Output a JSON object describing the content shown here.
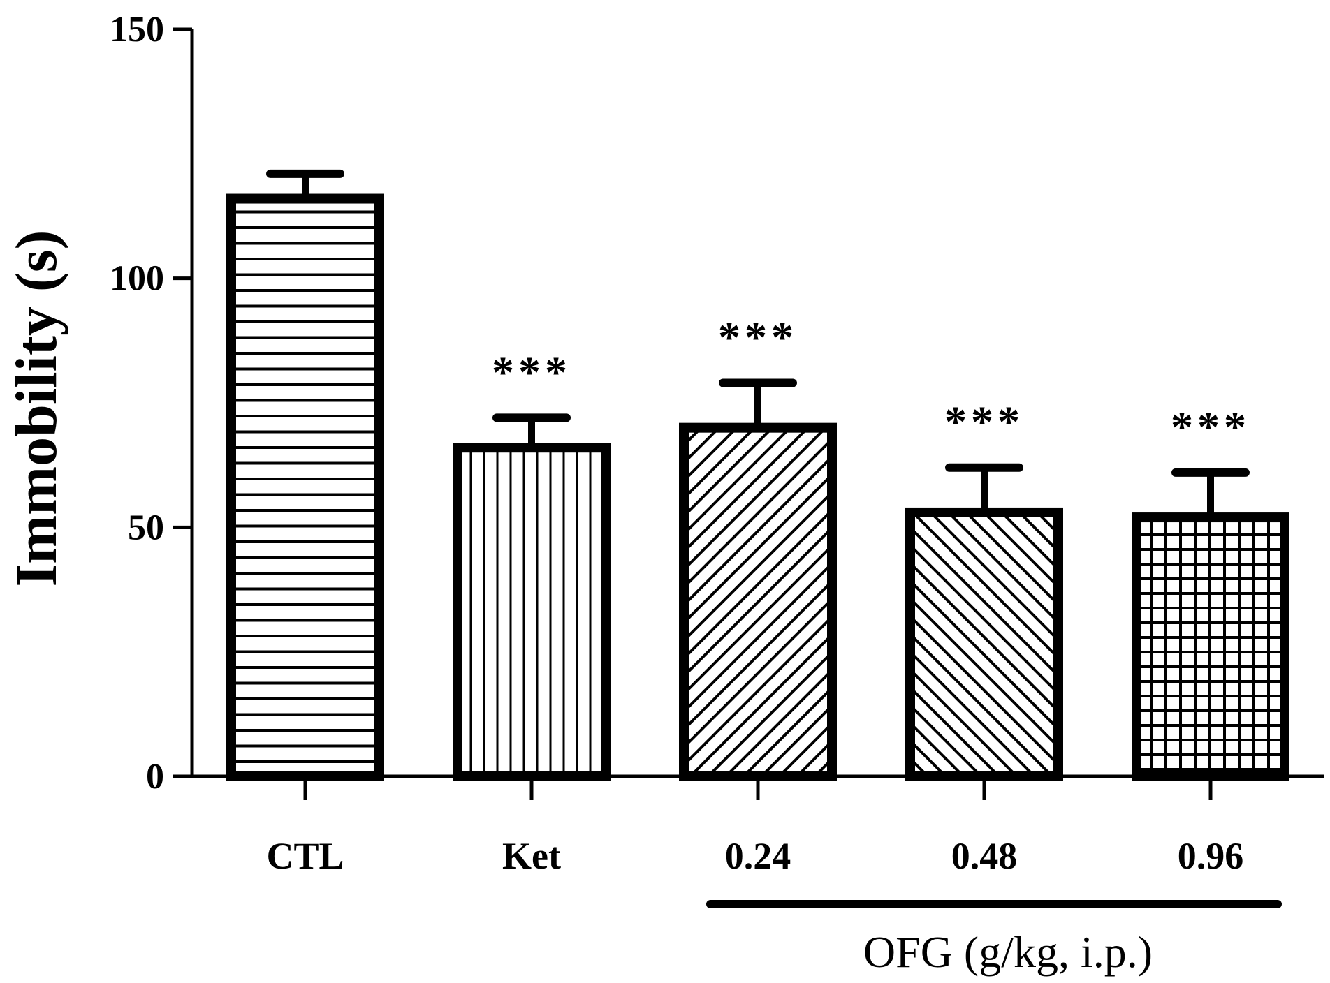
{
  "chart_data": {
    "type": "bar",
    "title": "",
    "xlabel": "",
    "ylabel": "Immobility (s)",
    "ylim": [
      0,
      150
    ],
    "yticks": [
      0,
      50,
      100,
      150
    ],
    "categories": [
      "CTL",
      "Ket",
      "0.24",
      "0.48",
      "0.96"
    ],
    "values": [
      116,
      66,
      70,
      53,
      52
    ],
    "errors": [
      5,
      6,
      9,
      9,
      9
    ],
    "significance": [
      "",
      "***",
      "***",
      "***",
      "***"
    ],
    "patterns": [
      "horizontal",
      "vertical",
      "diagonal-up",
      "diagonal-down",
      "grid"
    ],
    "group": {
      "label": "OFG (g/kg, i.p.)",
      "start_index": 2,
      "end_index": 4
    },
    "colors": {
      "stroke": "#000000",
      "fill": "#ffffff"
    }
  }
}
